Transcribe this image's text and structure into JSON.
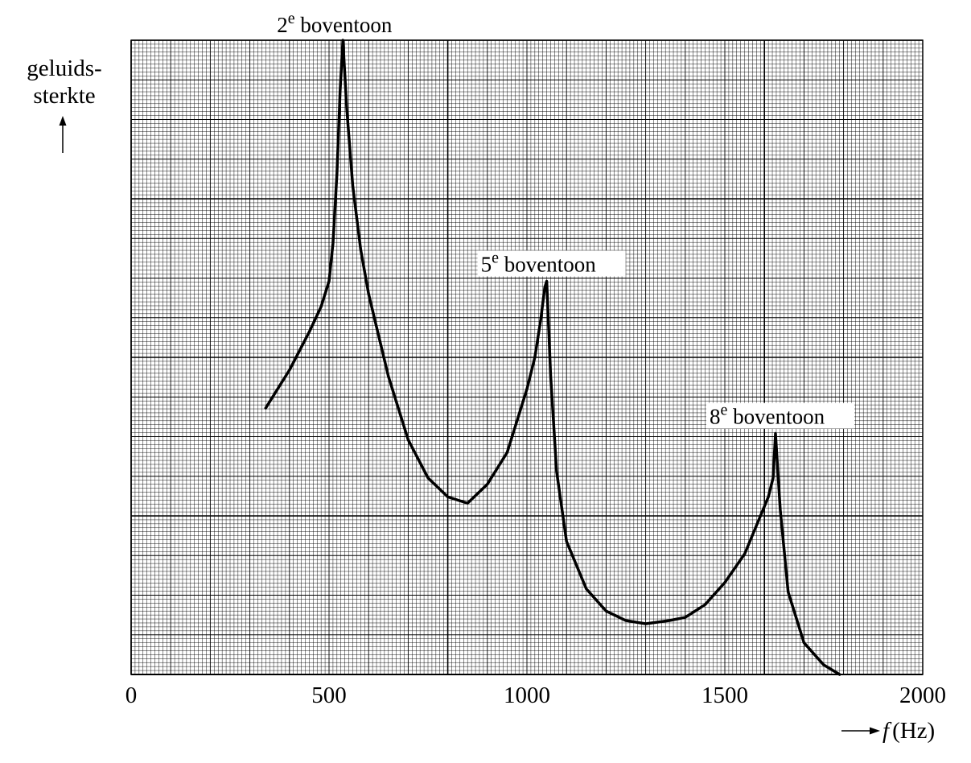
{
  "chart_data": {
    "type": "line",
    "title": "",
    "xlabel": "f (Hz)",
    "xlabel_parts": {
      "symbol": "f",
      "unit": "(Hz)"
    },
    "ylabel_lines": [
      "geluids-",
      "sterkte"
    ],
    "xlim": [
      0,
      2000
    ],
    "x_ticks": [
      0,
      500,
      1000,
      1500,
      2000
    ],
    "y_ticks_shown": false,
    "grid": true,
    "series": [
      {
        "x": [
          340,
          400,
          450,
          480,
          500,
          510,
          520,
          528,
          535,
          545,
          560,
          580,
          600,
          650,
          700,
          750,
          800,
          850,
          900,
          950,
          1000,
          1020,
          1035,
          1045,
          1050,
          1060,
          1075,
          1100,
          1150,
          1200,
          1250,
          1300,
          1360,
          1400,
          1450,
          1500,
          1550,
          1590,
          1610,
          1622,
          1628,
          1640,
          1660,
          1700,
          1750,
          1790
        ],
        "y": [
          42,
          48,
          54,
          58,
          62,
          68,
          79,
          92,
          100,
          89,
          77,
          67,
          60,
          47,
          37,
          31,
          28,
          27,
          30,
          35,
          45,
          50,
          56,
          61,
          62,
          47,
          32,
          21,
          13.5,
          10,
          8.5,
          8,
          8.5,
          9,
          11,
          14.5,
          19,
          25,
          28,
          31,
          38,
          26,
          13,
          5,
          1.5,
          0
        ]
      }
    ],
    "annotations": [
      {
        "sup": "e",
        "rest": " boventoon",
        "num": "2",
        "x": 535,
        "y": 100
      },
      {
        "sup": "e",
        "rest": " boventoon",
        "num": "5",
        "x": 1050,
        "y": 62
      },
      {
        "sup": "e",
        "rest": " boventoon",
        "num": "8",
        "x": 1628,
        "y": 38
      }
    ]
  }
}
